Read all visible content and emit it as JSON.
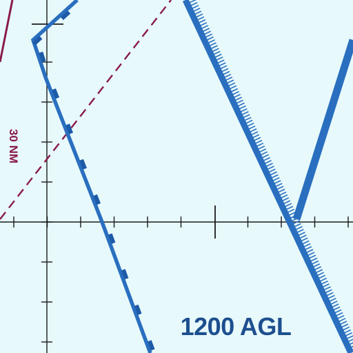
{
  "map": {
    "type": "aeronautical-chart-fragment",
    "background_color": "#e7f9fb",
    "altitude_label": "1200 AGL",
    "distance_label_partial": "30 NM",
    "colors": {
      "airway": "#2a6fbf",
      "airway_dark": "#1d5aa8",
      "label": "#1d4f8f",
      "boundary": "#8a1a4a",
      "grid": "#1a1a1a"
    },
    "features": {
      "wide_airway": "blue-hatched-border-line",
      "narrow_airway": "blue-line-with-tick-marks",
      "boundary_solid": "maroon-solid-line",
      "boundary_dashed": "maroon-dashed-line",
      "grid_lines": "black-graticule"
    }
  }
}
